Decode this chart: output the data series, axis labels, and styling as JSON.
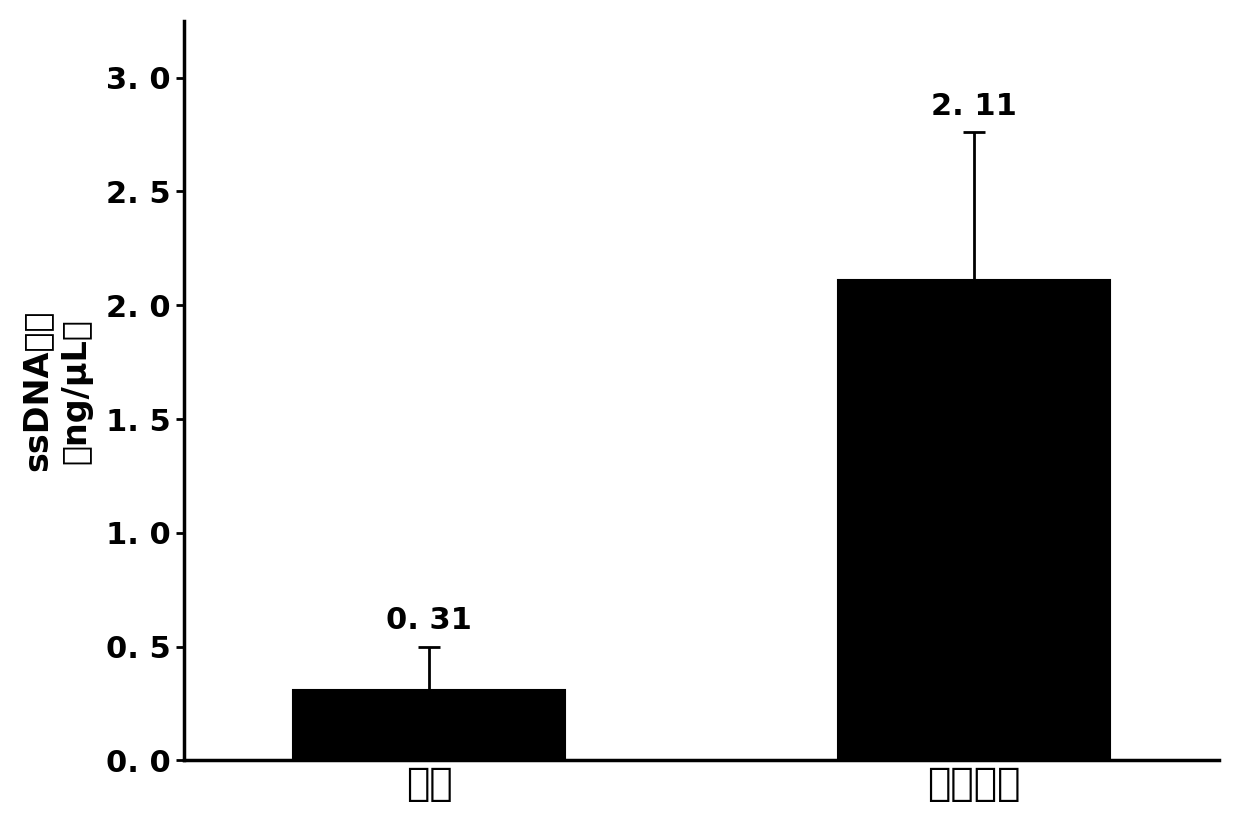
{
  "categories": [
    "尿素",
    "胰蛋白酶"
  ],
  "values": [
    0.31,
    2.11
  ],
  "errors": [
    0.19,
    0.65
  ],
  "bar_colors": [
    "#000000",
    "#000000"
  ],
  "bar_width": 0.5,
  "bar_positions": [
    1,
    2
  ],
  "ylabel_line1": "ssDNA浓度",
  "ylabel_line2": "（ng/μL）",
  "ylim": [
    0,
    3.25
  ],
  "yticks": [
    0.0,
    0.5,
    1.0,
    1.5,
    2.0,
    2.5,
    3.0
  ],
  "ytick_labels": [
    "0. 0",
    "0. 5",
    "1. 0",
    "1. 5",
    "2. 0",
    "2. 5",
    "3. 0"
  ],
  "value_labels": [
    "0. 31",
    "2. 11"
  ],
  "value_label_fontsize": 22,
  "ylabel_fontsize": 24,
  "tick_fontsize": 22,
  "xtick_fontsize": 28,
  "background_color": "#ffffff",
  "edge_color": "#000000",
  "capsize": 8,
  "error_linewidth": 2
}
